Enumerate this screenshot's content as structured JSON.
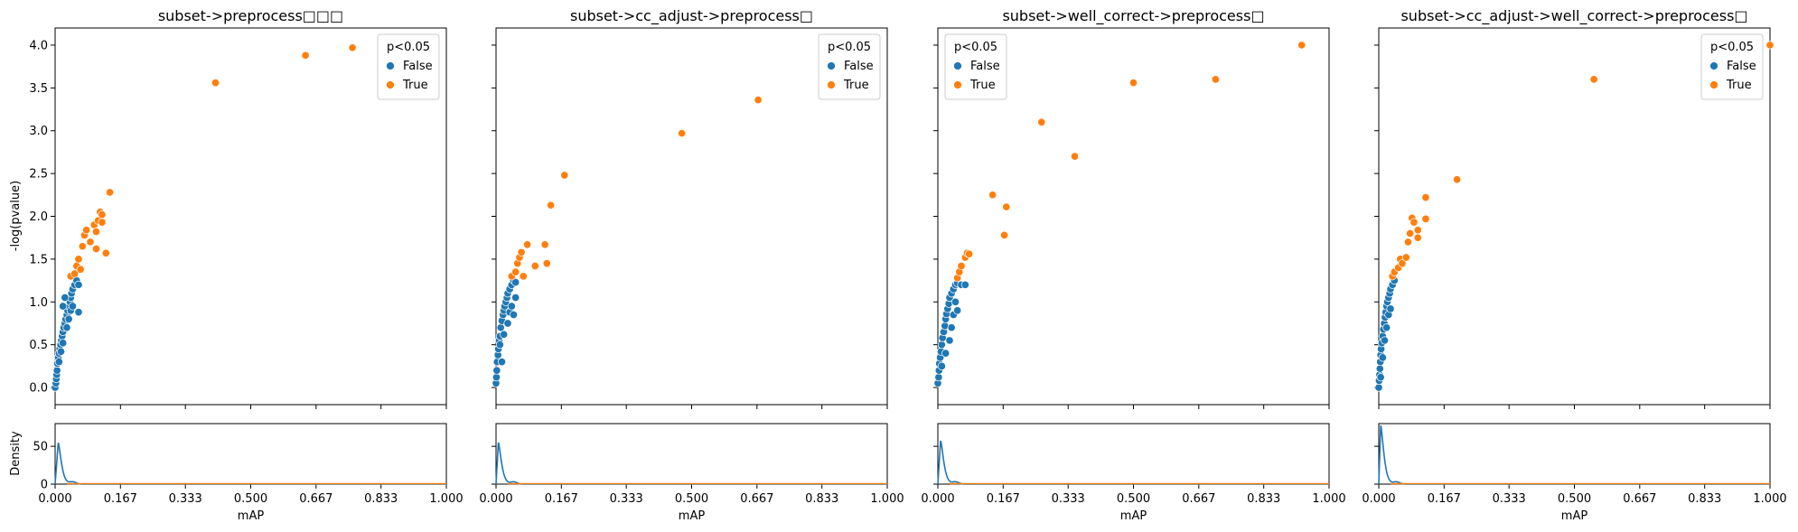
{
  "figure": {
    "y_axis_label": "-log(pvalue)",
    "density_axis_label": "Density",
    "x_axis_label": "mAP"
  },
  "colors": {
    "false": "#1f77b4",
    "true": "#ff7f0e",
    "edge": "#ffffff"
  },
  "chart_data": [
    {
      "type": "scatter",
      "title": "subset->preprocess□□□",
      "xlabel": "",
      "ylabel": "-log(pvalue)",
      "xlim": [
        0,
        1
      ],
      "ylim": [
        -0.2,
        4.2
      ],
      "x_ticks": [
        0,
        0.167,
        0.333,
        0.5,
        0.667,
        0.833,
        1.0
      ],
      "x_tick_labels": [
        "0.000",
        "0.167",
        "0.333",
        "0.500",
        "0.667",
        "0.833",
        "1.000"
      ],
      "y_ticks": [
        0,
        0.5,
        1.0,
        1.5,
        2.0,
        2.5,
        3.0,
        3.5,
        4.0
      ],
      "y_tick_labels": [
        "0.0",
        "0.5",
        "1.0",
        "1.5",
        "2.0",
        "2.5",
        "3.0",
        "3.5",
        "4.0"
      ],
      "legend": {
        "title": "p<0.05",
        "entries": [
          "False",
          "True"
        ],
        "placement": "top-right"
      },
      "series": [
        {
          "name": "False",
          "points": [
            [
              0.0,
              0.0
            ],
            [
              0.002,
              0.05
            ],
            [
              0.003,
              0.1
            ],
            [
              0.004,
              0.15
            ],
            [
              0.005,
              0.2
            ],
            [
              0.006,
              0.28
            ],
            [
              0.008,
              0.35
            ],
            [
              0.01,
              0.4
            ],
            [
              0.012,
              0.45
            ],
            [
              0.014,
              0.5
            ],
            [
              0.016,
              0.55
            ],
            [
              0.018,
              0.6
            ],
            [
              0.02,
              0.65
            ],
            [
              0.022,
              0.7
            ],
            [
              0.025,
              0.75
            ],
            [
              0.027,
              0.8
            ],
            [
              0.03,
              0.85
            ],
            [
              0.032,
              0.9
            ],
            [
              0.035,
              0.95
            ],
            [
              0.038,
              1.0
            ],
            [
              0.04,
              1.05
            ],
            [
              0.042,
              1.1
            ],
            [
              0.045,
              1.15
            ],
            [
              0.05,
              1.2
            ],
            [
              0.055,
              1.25
            ],
            [
              0.02,
              0.95
            ],
            [
              0.025,
              1.05
            ],
            [
              0.03,
              0.7
            ],
            [
              0.035,
              0.8
            ],
            [
              0.04,
              0.9
            ],
            [
              0.06,
              0.88
            ],
            [
              0.06,
              1.2
            ],
            [
              0.045,
              0.95
            ],
            [
              0.01,
              0.3
            ],
            [
              0.015,
              0.42
            ],
            [
              0.02,
              0.52
            ]
          ]
        },
        {
          "name": "True",
          "points": [
            [
              0.04,
              1.3
            ],
            [
              0.05,
              1.33
            ],
            [
              0.055,
              1.42
            ],
            [
              0.06,
              1.5
            ],
            [
              0.065,
              1.38
            ],
            [
              0.07,
              1.65
            ],
            [
              0.075,
              1.78
            ],
            [
              0.08,
              1.84
            ],
            [
              0.09,
              1.7
            ],
            [
              0.1,
              1.9
            ],
            [
              0.105,
              1.82
            ],
            [
              0.11,
              1.95
            ],
            [
              0.115,
              2.05
            ],
            [
              0.12,
              2.02
            ],
            [
              0.12,
              1.93
            ],
            [
              0.105,
              1.62
            ],
            [
              0.13,
              1.57
            ],
            [
              0.14,
              2.28
            ],
            [
              0.41,
              3.56
            ],
            [
              0.64,
              3.88
            ],
            [
              0.76,
              3.97
            ]
          ]
        }
      ],
      "density": {
        "ylim": [
          0,
          80
        ],
        "y_ticks": [
          0,
          50
        ],
        "y_tick_labels": [
          "0",
          "50"
        ],
        "false_peak": 55,
        "false_peak_x": 0.008
      }
    },
    {
      "type": "scatter",
      "title": "subset->cc_adjust->preprocess□",
      "xlabel": "",
      "ylabel": "",
      "xlim": [
        0,
        1
      ],
      "ylim": [
        -0.2,
        4.2
      ],
      "x_ticks": [
        0,
        0.167,
        0.333,
        0.5,
        0.667,
        0.833,
        1.0
      ],
      "x_tick_labels": [
        "0.000",
        "0.167",
        "0.333",
        "0.500",
        "0.667",
        "0.833",
        "1.000"
      ],
      "legend": {
        "title": "p<0.05",
        "entries": [
          "False",
          "True"
        ],
        "placement": "top-right"
      },
      "series": [
        {
          "name": "False",
          "points": [
            [
              0.0,
              0.05
            ],
            [
              0.001,
              0.12
            ],
            [
              0.002,
              0.2
            ],
            [
              0.003,
              0.3
            ],
            [
              0.005,
              0.38
            ],
            [
              0.006,
              0.45
            ],
            [
              0.008,
              0.55
            ],
            [
              0.01,
              0.6
            ],
            [
              0.012,
              0.7
            ],
            [
              0.015,
              0.78
            ],
            [
              0.018,
              0.85
            ],
            [
              0.02,
              0.9
            ],
            [
              0.022,
              0.95
            ],
            [
              0.025,
              1.0
            ],
            [
              0.028,
              1.05
            ],
            [
              0.03,
              1.1
            ],
            [
              0.035,
              1.15
            ],
            [
              0.04,
              1.2
            ],
            [
              0.045,
              1.25
            ],
            [
              0.05,
              1.23
            ],
            [
              0.01,
              0.5
            ],
            [
              0.02,
              0.62
            ],
            [
              0.03,
              0.75
            ],
            [
              0.035,
              0.88
            ],
            [
              0.04,
              0.95
            ],
            [
              0.045,
              0.85
            ],
            [
              0.05,
              1.05
            ],
            [
              0.015,
              0.3
            ]
          ]
        },
        {
          "name": "True",
          "points": [
            [
              0.04,
              1.3
            ],
            [
              0.05,
              1.35
            ],
            [
              0.055,
              1.45
            ],
            [
              0.06,
              1.52
            ],
            [
              0.065,
              1.58
            ],
            [
              0.07,
              1.3
            ],
            [
              0.08,
              1.67
            ],
            [
              0.1,
              1.42
            ],
            [
              0.125,
              1.67
            ],
            [
              0.13,
              1.45
            ],
            [
              0.14,
              2.13
            ],
            [
              0.175,
              2.48
            ],
            [
              0.475,
              2.97
            ],
            [
              0.67,
              3.36
            ]
          ]
        }
      ],
      "density": {
        "false_peak": 55,
        "false_peak_x": 0.006
      }
    },
    {
      "type": "scatter",
      "title": "subset->well_correct->preprocess□",
      "xlabel": "",
      "ylabel": "",
      "xlim": [
        0,
        1
      ],
      "ylim": [
        -0.2,
        4.2
      ],
      "x_ticks": [
        0,
        0.167,
        0.333,
        0.5,
        0.667,
        0.833,
        1.0
      ],
      "x_tick_labels": [
        "0.000",
        "0.167",
        "0.333",
        "0.500",
        "0.667",
        "0.833",
        "1.000"
      ],
      "legend": {
        "title": "p<0.05",
        "entries": [
          "False",
          "True"
        ],
        "placement": "top-left"
      },
      "series": [
        {
          "name": "False",
          "points": [
            [
              0.0,
              0.05
            ],
            [
              0.002,
              0.12
            ],
            [
              0.003,
              0.2
            ],
            [
              0.004,
              0.28
            ],
            [
              0.006,
              0.35
            ],
            [
              0.008,
              0.42
            ],
            [
              0.01,
              0.5
            ],
            [
              0.012,
              0.58
            ],
            [
              0.015,
              0.65
            ],
            [
              0.018,
              0.72
            ],
            [
              0.02,
              0.8
            ],
            [
              0.022,
              0.86
            ],
            [
              0.025,
              0.92
            ],
            [
              0.028,
              0.98
            ],
            [
              0.03,
              1.05
            ],
            [
              0.035,
              1.1
            ],
            [
              0.04,
              1.15
            ],
            [
              0.045,
              1.2
            ],
            [
              0.05,
              1.22
            ],
            [
              0.06,
              1.2
            ],
            [
              0.02,
              0.4
            ],
            [
              0.03,
              0.55
            ],
            [
              0.035,
              0.7
            ],
            [
              0.04,
              0.85
            ],
            [
              0.045,
              1.0
            ],
            [
              0.05,
              0.9
            ],
            [
              0.07,
              1.2
            ],
            [
              0.01,
              0.25
            ]
          ]
        },
        {
          "name": "True",
          "points": [
            [
              0.05,
              1.28
            ],
            [
              0.055,
              1.35
            ],
            [
              0.06,
              1.42
            ],
            [
              0.07,
              1.52
            ],
            [
              0.075,
              1.57
            ],
            [
              0.08,
              1.56
            ],
            [
              0.14,
              2.25
            ],
            [
              0.17,
              1.78
            ],
            [
              0.175,
              2.11
            ],
            [
              0.265,
              3.1
            ],
            [
              0.35,
              2.7
            ],
            [
              0.5,
              3.56
            ],
            [
              0.71,
              3.6
            ],
            [
              0.93,
              4.0
            ]
          ]
        }
      ],
      "density": {
        "false_peak": 58,
        "false_peak_x": 0.007
      }
    },
    {
      "type": "scatter",
      "title": "subset->cc_adjust->well_correct->preprocess□",
      "xlabel": "",
      "ylabel": "",
      "xlim": [
        0,
        1
      ],
      "ylim": [
        -0.2,
        4.2
      ],
      "x_ticks": [
        0,
        0.167,
        0.333,
        0.5,
        0.667,
        0.833,
        1.0
      ],
      "x_tick_labels": [
        "0.000",
        "0.167",
        "0.333",
        "0.500",
        "0.667",
        "0.833",
        "1.000"
      ],
      "legend": {
        "title": "p<0.05",
        "entries": [
          "False",
          "True"
        ],
        "placement": "top-right"
      },
      "series": [
        {
          "name": "False",
          "points": [
            [
              0.0,
              0.0
            ],
            [
              0.001,
              0.08
            ],
            [
              0.002,
              0.15
            ],
            [
              0.003,
              0.22
            ],
            [
              0.004,
              0.3
            ],
            [
              0.005,
              0.38
            ],
            [
              0.006,
              0.45
            ],
            [
              0.008,
              0.52
            ],
            [
              0.01,
              0.6
            ],
            [
              0.012,
              0.68
            ],
            [
              0.014,
              0.75
            ],
            [
              0.016,
              0.82
            ],
            [
              0.018,
              0.88
            ],
            [
              0.02,
              0.95
            ],
            [
              0.022,
              1.0
            ],
            [
              0.025,
              1.05
            ],
            [
              0.028,
              1.1
            ],
            [
              0.03,
              1.15
            ],
            [
              0.035,
              1.2
            ],
            [
              0.04,
              1.25
            ],
            [
              0.01,
              0.35
            ],
            [
              0.015,
              0.55
            ],
            [
              0.02,
              0.7
            ],
            [
              0.025,
              0.85
            ],
            [
              0.03,
              0.92
            ],
            [
              0.005,
              0.12
            ]
          ]
        },
        {
          "name": "True",
          "points": [
            [
              0.035,
              1.3
            ],
            [
              0.04,
              1.35
            ],
            [
              0.05,
              1.4
            ],
            [
              0.055,
              1.5
            ],
            [
              0.06,
              1.45
            ],
            [
              0.07,
              1.52
            ],
            [
              0.075,
              1.7
            ],
            [
              0.08,
              1.8
            ],
            [
              0.085,
              1.98
            ],
            [
              0.09,
              1.93
            ],
            [
              0.1,
              1.75
            ],
            [
              0.1,
              1.84
            ],
            [
              0.12,
              1.97
            ],
            [
              0.12,
              2.22
            ],
            [
              0.2,
              2.43
            ],
            [
              0.55,
              3.6
            ],
            [
              1.0,
              4.0
            ]
          ]
        }
      ],
      "density": {
        "false_peak": 78,
        "false_peak_x": 0.005
      }
    }
  ]
}
